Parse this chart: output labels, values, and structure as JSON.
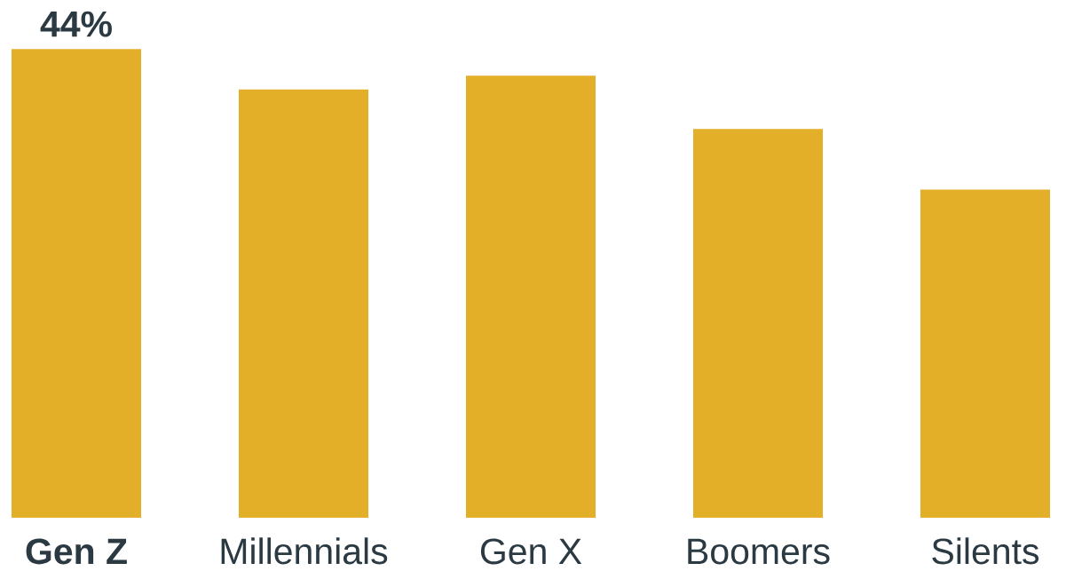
{
  "chart_data": {
    "type": "bar",
    "categories": [
      "**Gen Z**",
      "Millennials",
      "Gen X",
      "Boomers",
      "Silents"
    ],
    "values": [
      44,
      40.2,
      41.5,
      36.5,
      30.8
    ],
    "color": "#e3af28",
    "value_labels": [
      "44%",
      null,
      null,
      null,
      null
    ]
  }
}
